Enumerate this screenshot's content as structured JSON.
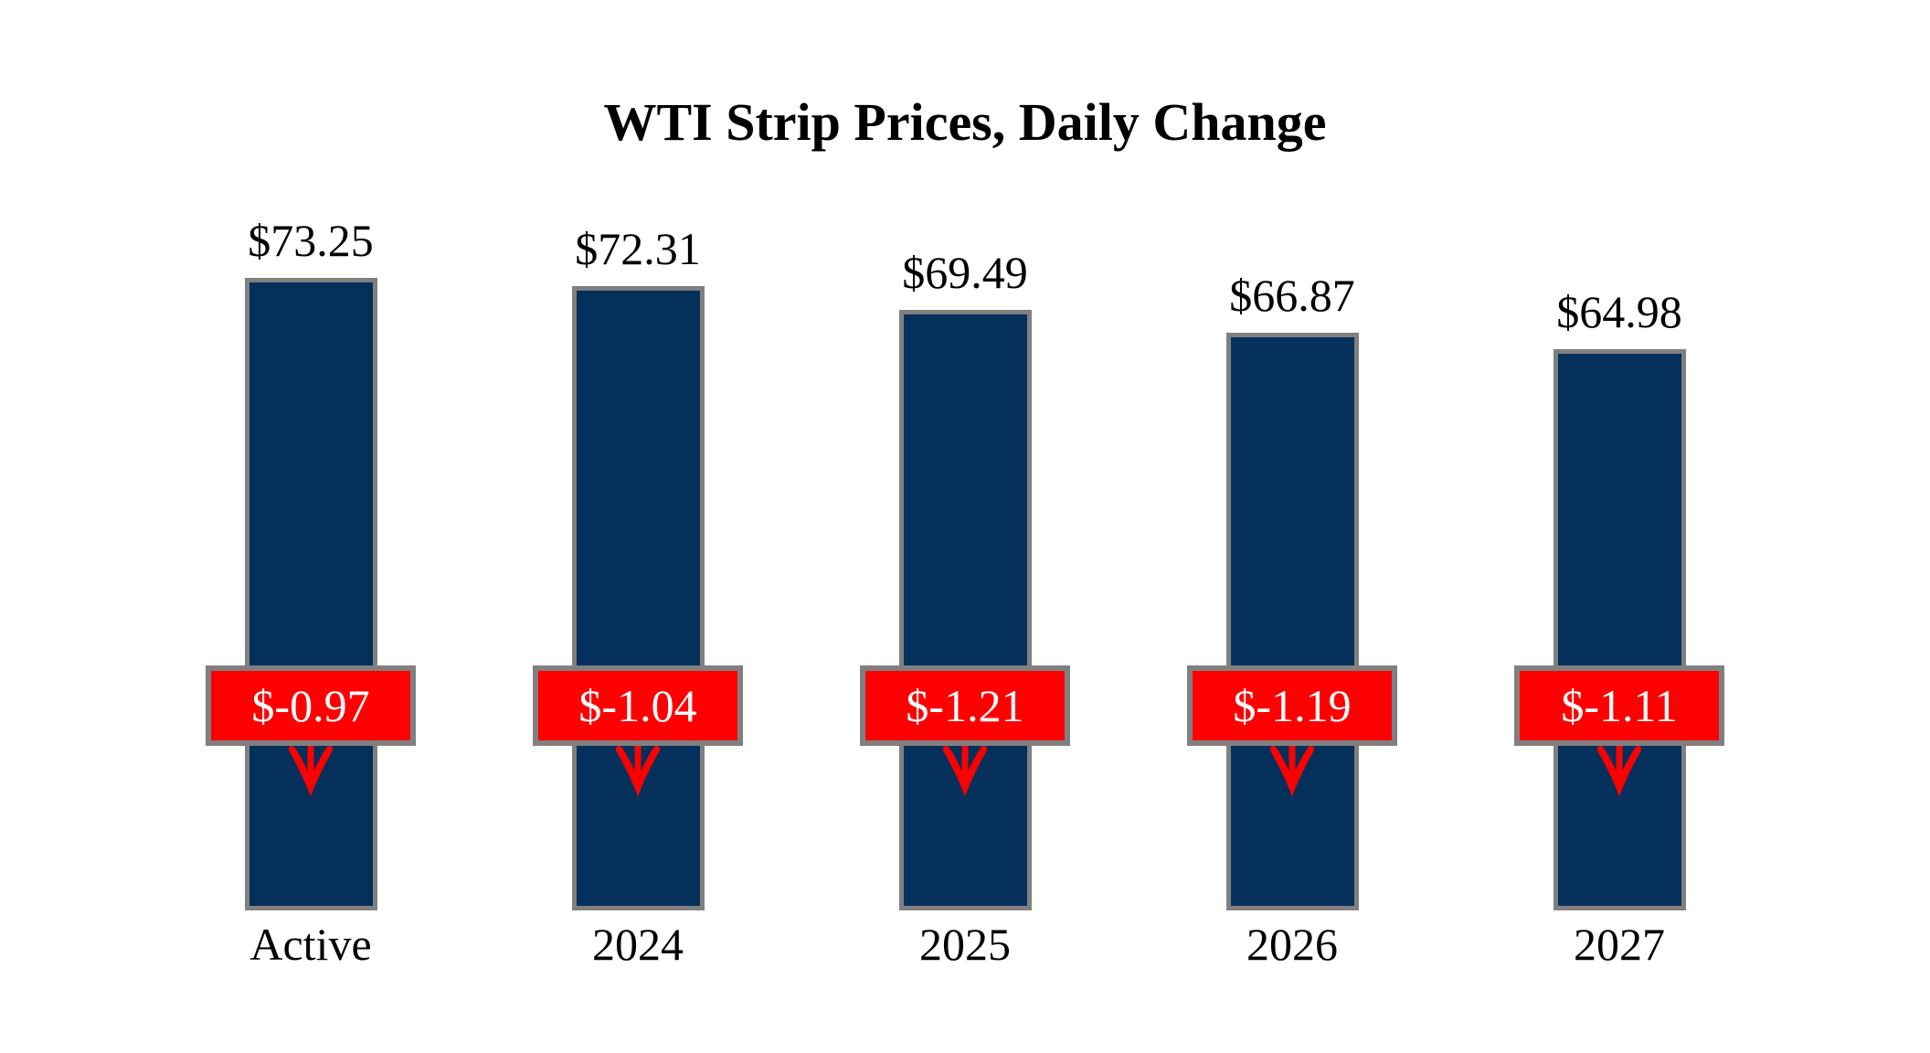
{
  "chart_data": {
    "type": "bar",
    "title": "WTI Strip Prices, Daily Change",
    "categories": [
      "Active",
      "2024",
      "2025",
      "2026",
      "2027"
    ],
    "series": [
      {
        "name": "strip_price",
        "values": [
          73.25,
          72.31,
          69.49,
          66.87,
          64.98
        ],
        "labels": [
          "$73.25",
          "$72.31",
          "$69.49",
          "$66.87",
          "$64.98"
        ]
      },
      {
        "name": "daily_change",
        "values": [
          -0.97,
          -1.04,
          -1.21,
          -1.19,
          -1.11
        ],
        "labels": [
          "$-0.97",
          "$-1.04",
          "$-1.21",
          "$-1.19",
          "$-1.11"
        ]
      }
    ],
    "ylim": [
      0,
      75
    ],
    "grid": false,
    "legend_position": "none",
    "axes_visible": false
  },
  "colors": {
    "background": "#FFFFFF",
    "bar_fill": "#05305C",
    "bar_border": "#808080",
    "badge_fill": "#FF0000",
    "badge_border": "#808080",
    "badge_text": "#FFFFFF",
    "arrow": "#FF0000",
    "title_text": "#000000",
    "label_text": "#000000"
  },
  "icons": {
    "down_arrow": "down-arrow-icon"
  }
}
